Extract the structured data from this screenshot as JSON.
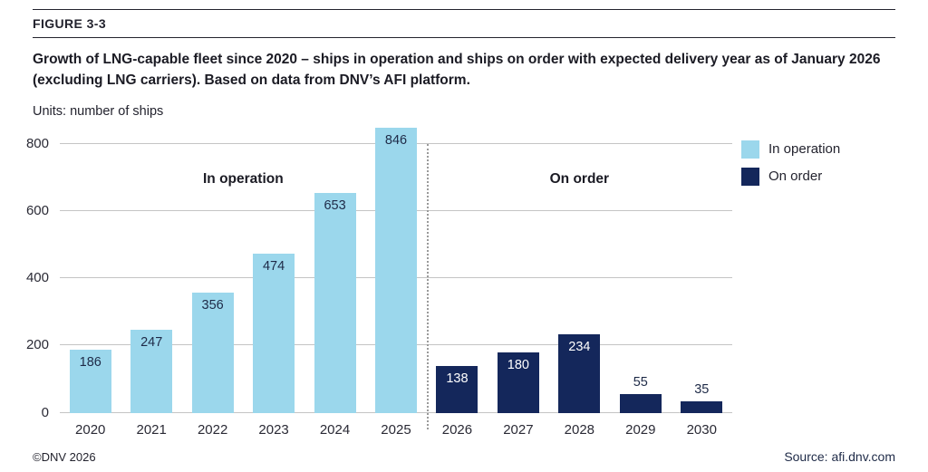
{
  "figure_label": "FIGURE 3-3",
  "title": "Growth of LNG-capable fleet since 2020 – ships in operation and ships on order with expected delivery year as of January 2026 (excluding LNG carriers). Based on data from DNV’s AFI platform.",
  "units_label": "Units: number of ships",
  "footer": {
    "copyright": "©DNV 2026",
    "source": "Source: afi.dnv.com"
  },
  "colors": {
    "light_blue": "#9BD7EC",
    "dark_navy": "#14275B",
    "grid": "#C4C4C4",
    "divider": "#9A9A9A",
    "text": "#1E2A47"
  },
  "chart_data": {
    "type": "bar",
    "title": "Growth of LNG-capable fleet since 2020",
    "units": "number of ships",
    "categories": [
      "2020",
      "2021",
      "2022",
      "2023",
      "2024",
      "2025",
      "2026",
      "2027",
      "2028",
      "2029",
      "2030"
    ],
    "series": [
      {
        "name": "In operation",
        "color": "#9BD7EC",
        "label_color": "#1E2A47",
        "values": [
          186,
          247,
          356,
          474,
          653,
          846,
          null,
          null,
          null,
          null,
          null
        ]
      },
      {
        "name": "On order",
        "color": "#14275B",
        "label_color": "#FFFFFF",
        "values": [
          null,
          null,
          null,
          null,
          null,
          null,
          138,
          180,
          234,
          55,
          35
        ]
      }
    ],
    "ylim": [
      0,
      800
    ],
    "yticks": [
      0,
      200,
      400,
      600,
      800
    ],
    "grid": true,
    "legend": [
      "In operation",
      "On order"
    ],
    "legend_position": "top-right",
    "section_labels": [
      {
        "text": "In operation",
        "span": [
          0,
          5
        ]
      },
      {
        "text": "On order",
        "span": [
          6,
          10
        ]
      }
    ],
    "divider_after_index": 5
  }
}
